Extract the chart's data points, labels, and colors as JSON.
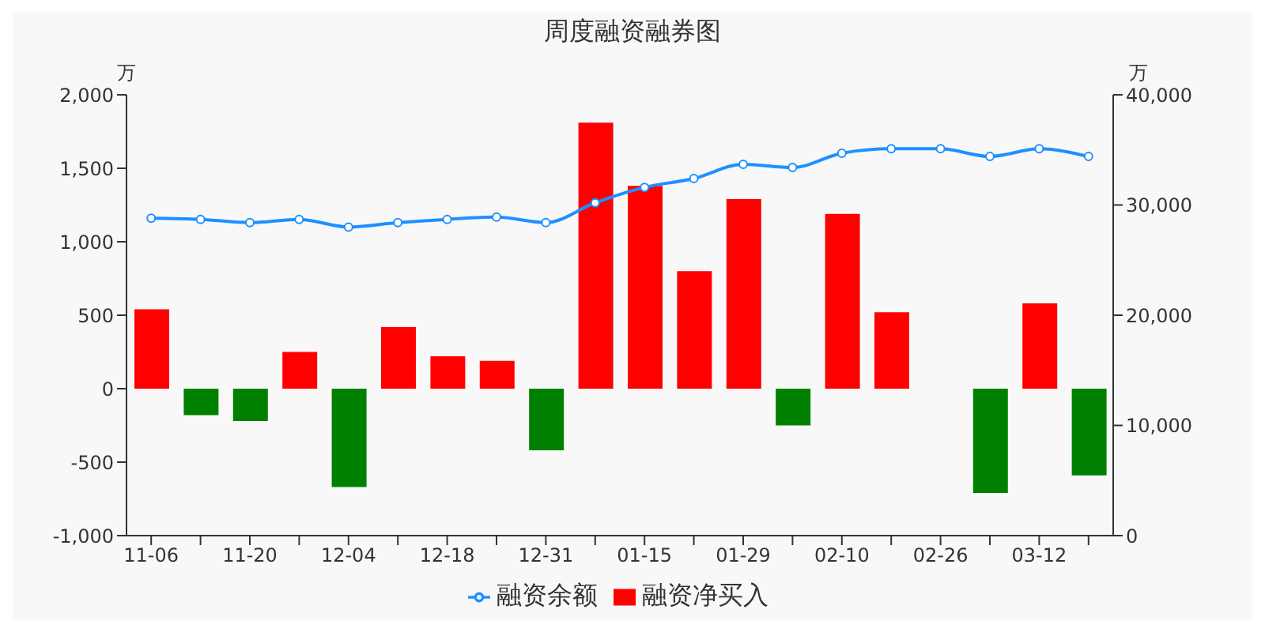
{
  "chart_data": {
    "type": "bar",
    "title": "周度融资融券图",
    "ylabel": "万",
    "y2label": "万",
    "categories": [
      "11-06",
      null,
      "11-20",
      null,
      "12-04",
      null,
      "12-18",
      null,
      "12-31",
      null,
      "01-15",
      null,
      "01-29",
      null,
      "02-10",
      null,
      "02-26",
      null,
      "03-12",
      null
    ],
    "series": [
      {
        "name": "融资余额",
        "type": "line",
        "axis": "y2",
        "color": "#1e90ff",
        "marker": "circle",
        "values": [
          28800,
          28700,
          28400,
          28700,
          28000,
          28400,
          28700,
          28900,
          28400,
          30200,
          31600,
          32400,
          33700,
          33400,
          34700,
          35100,
          35100,
          34400,
          35100,
          34400
        ]
      },
      {
        "name": "融资净买入",
        "color": "#ff0000",
        "colors": [
          "#ff0000",
          "#008000",
          "#008000",
          "#ff0000",
          "#008000",
          "#ff0000",
          "#ff0000",
          "#ff0000",
          "#008000",
          "#ff0000",
          "#ff0000",
          "#ff0000",
          "#ff0000",
          "#008000",
          "#ff0000",
          "#ff0000",
          "#ff0000",
          "#008000",
          "#ff0000",
          "#008000"
        ],
        "values": [
          540,
          -180,
          -220,
          250,
          -670,
          420,
          220,
          190,
          -420,
          1810,
          1380,
          800,
          1290,
          -250,
          1190,
          520,
          0,
          -710,
          580,
          -590
        ]
      }
    ],
    "ylim": [
      -1000,
      2000
    ],
    "yticks": [
      {
        "value": -1000,
        "label": "-1,000"
      },
      -500,
      0,
      500,
      {
        "value": 1000,
        "label": "1,000"
      },
      {
        "value": 1500,
        "label": "1,500"
      },
      {
        "value": 2000,
        "label": "2,000"
      }
    ],
    "y2lim": [
      0,
      40000
    ],
    "y2ticks": [
      0,
      {
        "value": 10000,
        "label": "10,000"
      },
      {
        "value": 20000,
        "label": "20,000"
      },
      {
        "value": 30000,
        "label": "30,000"
      },
      {
        "value": 40000,
        "label": "40,000"
      }
    ],
    "legend": "bottom",
    "grid": false
  }
}
